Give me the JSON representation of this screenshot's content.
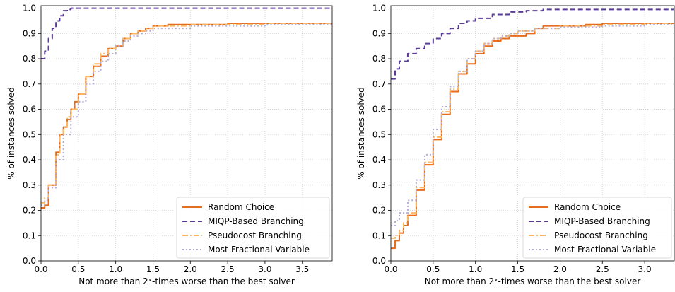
{
  "colors": {
    "random": "#e66c1f",
    "miqp": "#5a3c96",
    "pseudocost": "#fdb863",
    "mostfrac": "#b2abd2",
    "grid": "#cccccc"
  },
  "chart_data": [
    {
      "type": "line",
      "xlabel": "Not more than 2ˣ-times worse than the best solver",
      "ylabel": "% of instances solved",
      "xlim": [
        0,
        3.9
      ],
      "ylim": [
        0,
        1.01
      ],
      "xticks": [
        "0.0",
        "0.5",
        "1.0",
        "1.5",
        "2.0",
        "2.5",
        "3.0",
        "3.5"
      ],
      "yticks": [
        "0.0",
        "0.1",
        "0.2",
        "0.3",
        "0.4",
        "0.5",
        "0.6",
        "0.7",
        "0.8",
        "0.9",
        "1.0"
      ],
      "grid": true,
      "legend_position": "bottom-right",
      "series": [
        {
          "name": "Random Choice",
          "style": "solid",
          "color_key": "random",
          "x": [
            0,
            0.05,
            0.1,
            0.2,
            0.25,
            0.3,
            0.35,
            0.4,
            0.45,
            0.5,
            0.6,
            0.7,
            0.8,
            0.9,
            1.0,
            1.1,
            1.2,
            1.3,
            1.4,
            1.5,
            1.7,
            2.0,
            2.5,
            3.0,
            3.5,
            3.9
          ],
          "y": [
            0.21,
            0.22,
            0.3,
            0.43,
            0.5,
            0.53,
            0.56,
            0.6,
            0.63,
            0.66,
            0.73,
            0.77,
            0.81,
            0.84,
            0.85,
            0.88,
            0.9,
            0.91,
            0.92,
            0.93,
            0.935,
            0.935,
            0.94,
            0.94,
            0.94,
            0.94
          ]
        },
        {
          "name": "MIQP-Based Branching",
          "style": "dashed",
          "color_key": "miqp",
          "x": [
            0,
            0.05,
            0.1,
            0.15,
            0.2,
            0.25,
            0.3,
            0.35,
            0.4,
            3.9
          ],
          "y": [
            0.8,
            0.83,
            0.88,
            0.92,
            0.95,
            0.97,
            0.99,
            0.995,
            1.0,
            1.0
          ]
        },
        {
          "name": "Pseudocost Branching",
          "style": "dashdot",
          "color_key": "pseudocost",
          "x": [
            0,
            0.05,
            0.1,
            0.2,
            0.25,
            0.3,
            0.35,
            0.4,
            0.5,
            0.6,
            0.7,
            0.8,
            0.9,
            1.0,
            1.1,
            1.2,
            1.3,
            1.4,
            1.5,
            2.0,
            3.0,
            3.9
          ],
          "y": [
            0.23,
            0.25,
            0.3,
            0.42,
            0.5,
            0.53,
            0.57,
            0.6,
            0.66,
            0.73,
            0.78,
            0.82,
            0.84,
            0.85,
            0.88,
            0.9,
            0.91,
            0.92,
            0.93,
            0.935,
            0.94,
            0.94
          ]
        },
        {
          "name": "Most-Fractional Variable",
          "style": "dotted",
          "color_key": "mostfrac",
          "x": [
            0,
            0.05,
            0.1,
            0.2,
            0.3,
            0.4,
            0.5,
            0.6,
            0.7,
            0.8,
            0.9,
            1.0,
            1.1,
            1.2,
            1.3,
            1.4,
            1.5,
            2.0,
            3.0,
            3.9
          ],
          "y": [
            0.22,
            0.24,
            0.29,
            0.4,
            0.5,
            0.57,
            0.63,
            0.7,
            0.75,
            0.79,
            0.82,
            0.85,
            0.87,
            0.89,
            0.9,
            0.91,
            0.92,
            0.93,
            0.935,
            0.935
          ]
        }
      ],
      "legend": [
        "Random Choice",
        "MIQP-Based Branching",
        "Pseudocost Branching",
        "Most-Fractional Variable"
      ]
    },
    {
      "type": "line",
      "xlabel": "Not more than 2ˣ-times worse than the best solver",
      "ylabel": "% of instances solved",
      "xlim": [
        0,
        3.35
      ],
      "ylim": [
        0,
        1.01
      ],
      "xticks": [
        "0.0",
        "0.5",
        "1.0",
        "1.5",
        "2.0",
        "2.5",
        "3.0"
      ],
      "yticks": [
        "0.0",
        "0.1",
        "0.2",
        "0.3",
        "0.4",
        "0.5",
        "0.6",
        "0.7",
        "0.8",
        "0.9",
        "1.0"
      ],
      "grid": true,
      "legend_position": "bottom-right",
      "series": [
        {
          "name": "Random Choice",
          "style": "solid",
          "color_key": "random",
          "x": [
            0,
            0.05,
            0.1,
            0.15,
            0.2,
            0.3,
            0.4,
            0.5,
            0.6,
            0.7,
            0.8,
            0.9,
            1.0,
            1.1,
            1.2,
            1.3,
            1.4,
            1.5,
            1.6,
            1.7,
            1.8,
            2.0,
            2.3,
            2.5,
            3.0,
            3.35
          ],
          "y": [
            0.05,
            0.08,
            0.11,
            0.14,
            0.18,
            0.28,
            0.38,
            0.48,
            0.58,
            0.67,
            0.74,
            0.78,
            0.82,
            0.85,
            0.87,
            0.88,
            0.89,
            0.89,
            0.9,
            0.92,
            0.93,
            0.93,
            0.935,
            0.94,
            0.94,
            0.94
          ]
        },
        {
          "name": "MIQP-Based Branching",
          "style": "dashed",
          "color_key": "miqp",
          "x": [
            0,
            0.05,
            0.1,
            0.2,
            0.3,
            0.4,
            0.5,
            0.6,
            0.7,
            0.8,
            0.9,
            1.0,
            1.2,
            1.4,
            1.6,
            1.8,
            3.35
          ],
          "y": [
            0.72,
            0.76,
            0.79,
            0.82,
            0.84,
            0.86,
            0.88,
            0.9,
            0.92,
            0.94,
            0.95,
            0.96,
            0.975,
            0.985,
            0.99,
            0.995,
            1.0
          ]
        },
        {
          "name": "Pseudocost Branching",
          "style": "dashdot",
          "color_key": "pseudocost",
          "x": [
            0,
            0.05,
            0.1,
            0.15,
            0.2,
            0.3,
            0.4,
            0.5,
            0.6,
            0.7,
            0.8,
            0.9,
            1.0,
            1.1,
            1.2,
            1.3,
            1.4,
            1.5,
            1.7,
            2.0,
            2.5,
            3.0,
            3.35
          ],
          "y": [
            0.09,
            0.1,
            0.12,
            0.15,
            0.19,
            0.29,
            0.39,
            0.49,
            0.59,
            0.68,
            0.75,
            0.8,
            0.83,
            0.86,
            0.88,
            0.89,
            0.9,
            0.91,
            0.92,
            0.93,
            0.935,
            0.94,
            0.94
          ]
        },
        {
          "name": "Most-Fractional Variable",
          "style": "dotted",
          "color_key": "mostfrac",
          "x": [
            0,
            0.05,
            0.1,
            0.2,
            0.3,
            0.4,
            0.5,
            0.6,
            0.7,
            0.8,
            0.9,
            1.0,
            1.1,
            1.2,
            1.3,
            1.4,
            1.5,
            1.7,
            2.0,
            2.5,
            3.0,
            3.35
          ],
          "y": [
            0.14,
            0.16,
            0.19,
            0.24,
            0.32,
            0.42,
            0.52,
            0.61,
            0.69,
            0.75,
            0.8,
            0.83,
            0.86,
            0.88,
            0.89,
            0.9,
            0.91,
            0.92,
            0.925,
            0.93,
            0.935,
            0.935
          ]
        }
      ],
      "legend": [
        "Random Choice",
        "MIQP-Based Branching",
        "Pseudocost Branching",
        "Most-Fractional Variable"
      ]
    }
  ]
}
